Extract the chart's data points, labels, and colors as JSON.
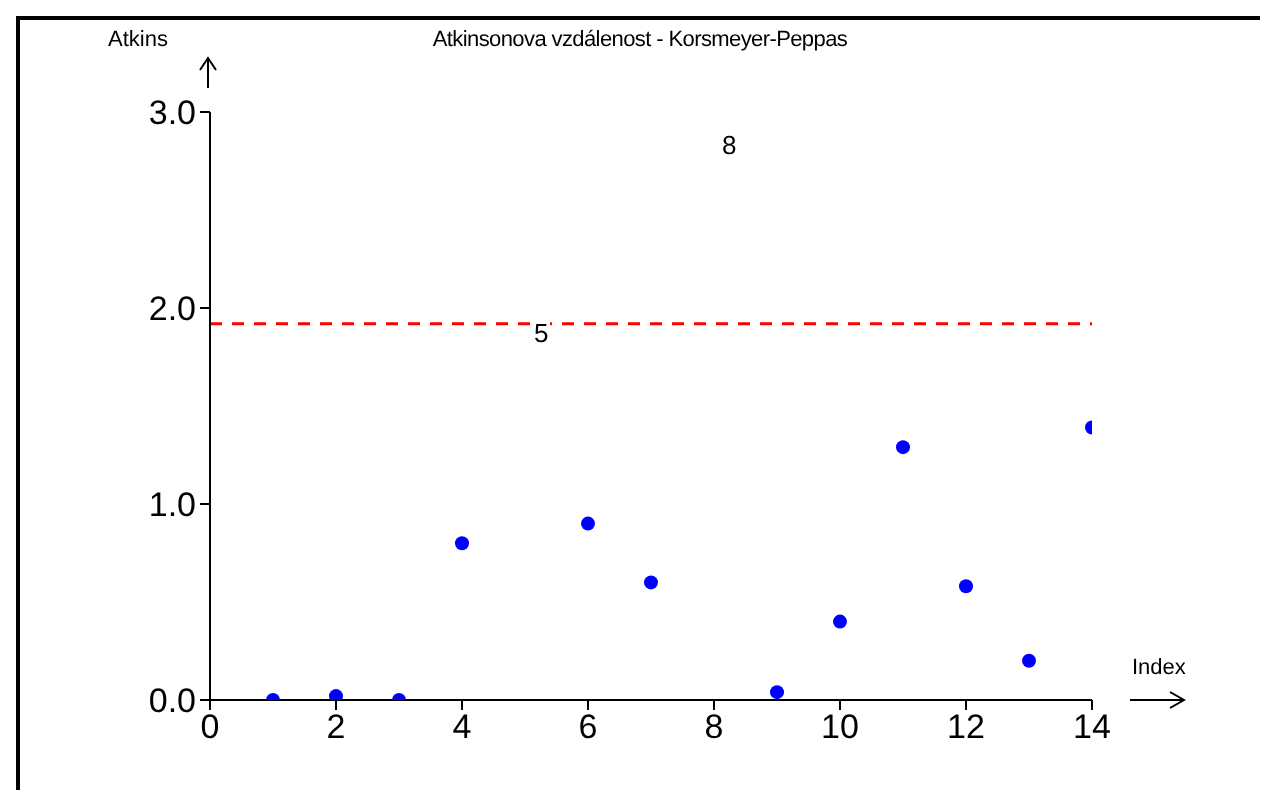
{
  "chart_data": {
    "type": "scatter",
    "title": "Atkinsonova vzdálenost - Korsmeyer-Peppas",
    "xlabel": "Index",
    "ylabel": "Atkins",
    "x": [
      1,
      2,
      3,
      4,
      5,
      6,
      7,
      8,
      9,
      10,
      11,
      12,
      13,
      14
    ],
    "series": [
      {
        "color": "#0000ff",
        "values": [
          0.0,
          0.02,
          0.0,
          0.8,
          null,
          0.9,
          0.6,
          null,
          0.04,
          0.4,
          1.29,
          0.58,
          0.2,
          1.39
        ]
      }
    ],
    "annotations": [
      "5",
      "8"
    ],
    "ref_lines": [
      {
        "axis": "y",
        "value": 1.92,
        "color": "#ff0000",
        "line_style": "dashed"
      }
    ],
    "xlim": [
      0,
      14
    ],
    "xticks": [
      0,
      2,
      4,
      6,
      8,
      10,
      12,
      14
    ],
    "ylim": [
      0,
      3
    ],
    "yticks": [
      {
        "value": 0,
        "label": "0.0"
      },
      {
        "value": 1,
        "label": "1.0"
      },
      {
        "value": 2,
        "label": "2.0"
      },
      {
        "value": 3,
        "label": "3.0"
      }
    ],
    "marker": "circle",
    "grid": false,
    "legend": false
  }
}
